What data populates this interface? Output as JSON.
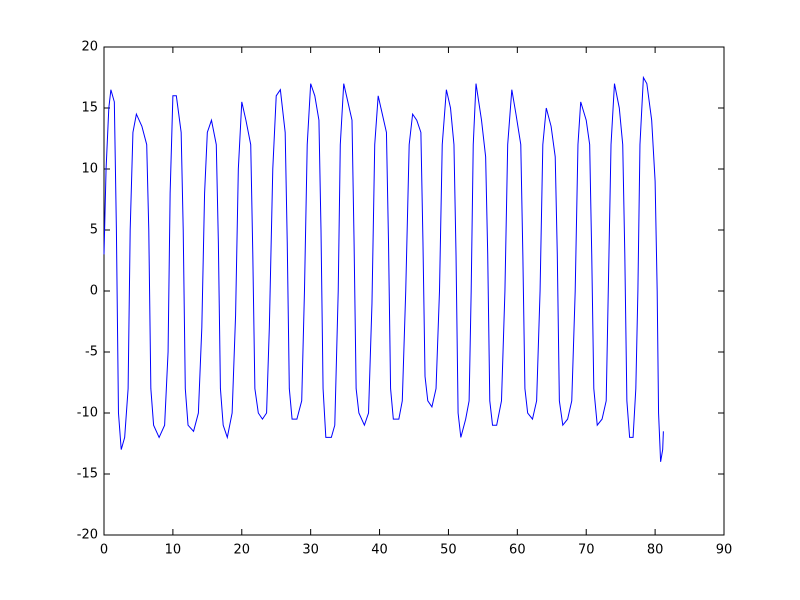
{
  "chart_data": {
    "type": "line",
    "x": [
      0,
      0.3,
      0.7,
      1,
      1.5,
      1.8,
      2.1,
      2.5,
      3,
      3.5,
      3.8,
      4.2,
      4.7,
      5.5,
      6.2,
      6.5,
      6.8,
      7.2,
      8,
      8.8,
      9.3,
      9.6,
      10,
      10.5,
      11.2,
      11.5,
      11.8,
      12.2,
      13,
      13.7,
      14.2,
      14.6,
      15,
      15.6,
      16.3,
      16.6,
      16.9,
      17.3,
      17.9,
      18.6,
      19.1,
      19.5,
      20,
      20.6,
      21.3,
      21.6,
      21.9,
      22.4,
      23,
      23.6,
      24,
      24.5,
      25,
      25.6,
      26.3,
      26.6,
      26.9,
      27.3,
      28,
      28.7,
      29.1,
      29.5,
      30,
      30.6,
      31.2,
      31.5,
      31.8,
      32.2,
      33,
      33.5,
      34,
      34.3,
      34.8,
      35.4,
      36,
      36.3,
      36.6,
      37,
      37.8,
      38.4,
      38.9,
      39.3,
      39.8,
      40.4,
      41,
      41.3,
      41.6,
      42,
      42.8,
      43.3,
      43.8,
      44.3,
      44.8,
      45.4,
      46,
      46.3,
      46.6,
      47,
      47.6,
      48.2,
      48.7,
      49.1,
      49.7,
      50.3,
      50.8,
      51.1,
      51.4,
      51.8,
      52.5,
      53,
      53.3,
      53.6,
      54,
      54.8,
      55.4,
      55.7,
      56,
      56.4,
      57,
      57.7,
      58.2,
      58.6,
      59.2,
      59.8,
      60.5,
      60.8,
      61.1,
      61.5,
      62.2,
      62.8,
      63.3,
      63.7,
      64.2,
      64.9,
      65.5,
      65.8,
      66.1,
      66.6,
      67.3,
      67.9,
      68.4,
      68.8,
      69.2,
      70,
      70.5,
      70.8,
      71.1,
      71.6,
      72.3,
      72.9,
      73.2,
      73.6,
      74.1,
      74.8,
      75.3,
      75.6,
      75.9,
      76.3,
      76.8,
      77.2,
      77.5,
      77.8,
      78.3,
      78.8,
      79.5,
      80,
      80.3,
      80.5,
      80.8,
      81.1,
      81.2
    ],
    "values": [
      3,
      10,
      15,
      16.5,
      15.5,
      5,
      -10,
      -13,
      -12,
      -8,
      5,
      13,
      14.5,
      13.5,
      12,
      5,
      -8,
      -11,
      -12,
      -11,
      -5,
      8,
      16,
      16,
      13,
      5,
      -8,
      -11,
      -11.5,
      -10,
      -3,
      8,
      13,
      14,
      12,
      4,
      -8,
      -11,
      -12,
      -10,
      -2,
      10,
      15.5,
      14,
      12,
      3,
      -8,
      -10,
      -10.5,
      -10,
      -3,
      10,
      16,
      16.5,
      13,
      4,
      -8,
      -10.5,
      -10.5,
      -9,
      0,
      12,
      17,
      16,
      14,
      5,
      -8,
      -12,
      -12,
      -11,
      0,
      12,
      17,
      15.5,
      14,
      4,
      -8,
      -10,
      -11,
      -10,
      -1,
      12,
      16,
      14.5,
      13,
      4,
      -8,
      -10.5,
      -10.5,
      -9,
      0,
      12,
      14.5,
      14,
      13,
      4,
      -7,
      -9,
      -9.5,
      -8,
      0,
      12,
      16.5,
      15,
      12,
      3,
      -10,
      -12,
      -10.5,
      -9,
      0,
      12,
      17,
      14,
      11,
      3,
      -9,
      -11,
      -11,
      -9,
      0,
      12,
      16.5,
      14.5,
      12,
      3,
      -8,
      -10,
      -10.5,
      -9,
      0,
      12,
      15,
      13.5,
      11,
      3,
      -9,
      -11,
      -10.5,
      -9,
      0,
      12,
      15.5,
      14,
      12,
      3,
      -8,
      -11,
      -10.5,
      -9,
      0,
      12,
      17,
      15,
      12,
      3,
      -9,
      -12,
      -12,
      -8,
      0,
      12,
      17.5,
      17,
      14,
      9,
      0,
      -10,
      -14,
      -13,
      -11.5
    ],
    "color": "#0000ff",
    "xlim": [
      0,
      90
    ],
    "xticks": [
      0,
      10,
      20,
      30,
      40,
      50,
      60,
      70,
      80,
      90
    ],
    "ylim": [
      -20,
      20
    ],
    "yticks": [
      -20,
      -15,
      -10,
      -5,
      0,
      5,
      10,
      15,
      20
    ],
    "grid": false
  }
}
